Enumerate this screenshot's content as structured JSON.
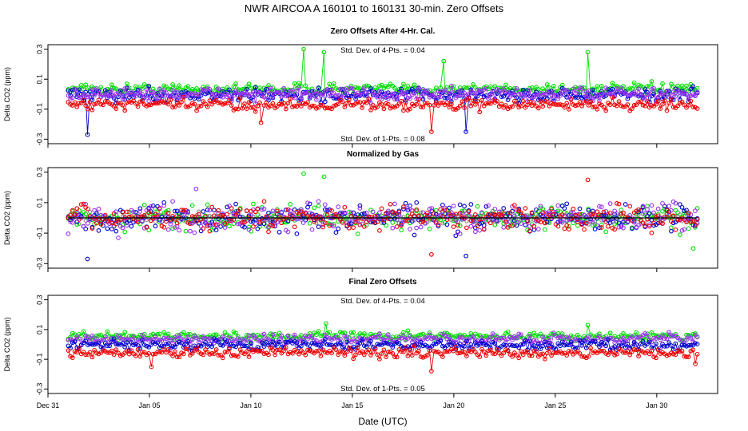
{
  "figure": {
    "title": "NWR   AIRCOA A   160101 to 160131   30-min. Zero Offsets",
    "x_axis_label": "Date (UTC)"
  },
  "colors": {
    "green": "#00dd00",
    "blue": "#0000cc",
    "red": "#ee0000",
    "purple": "#9933ee",
    "gray": "#888888",
    "black": "#000000"
  },
  "chart_data": [
    {
      "type": "scatter",
      "title": "Zero Offsets After 4-Hr. Cal.",
      "xlabel": "",
      "ylabel": "Delta CO2 (ppm)",
      "xlim": [
        0,
        33
      ],
      "ylim": [
        -0.33,
        0.33
      ],
      "yticks": [
        -0.3,
        -0.1,
        0.1,
        0.3
      ],
      "ytick_labels": [
        "-0.3",
        "-0.1",
        "0.1",
        "0.3"
      ],
      "annotations": [
        "Std. Dev. of 4-Pts. = 0.04",
        "Std. Dev. of 1-Pts. = 0.08"
      ],
      "series": [
        {
          "name": "green",
          "mean": 0.035,
          "spread": 0.032,
          "lines": true
        },
        {
          "name": "blue",
          "mean": -0.005,
          "spread": 0.04,
          "lines": true
        },
        {
          "name": "purple",
          "mean": 0.0,
          "spread": 0.04,
          "lines": true
        },
        {
          "name": "red",
          "mean": -0.07,
          "spread": 0.035,
          "lines": true
        }
      ],
      "spikes": [
        {
          "series": "green",
          "x": 12.6,
          "y": 0.3
        },
        {
          "series": "green",
          "x": 13.6,
          "y": 0.28
        },
        {
          "series": "green",
          "x": 26.6,
          "y": 0.28
        },
        {
          "series": "green",
          "x": 19.5,
          "y": 0.22
        },
        {
          "series": "blue",
          "x": 1.95,
          "y": -0.27
        },
        {
          "series": "blue",
          "x": 20.6,
          "y": -0.25
        },
        {
          "series": "red",
          "x": 18.9,
          "y": -0.25
        },
        {
          "series": "red",
          "x": 10.5,
          "y": -0.19
        }
      ]
    },
    {
      "type": "scatter",
      "title": "Normalized by Gas",
      "xlabel": "",
      "ylabel": "Delta CO2 (ppm)",
      "xlim": [
        0,
        33
      ],
      "ylim": [
        -0.33,
        0.33
      ],
      "yticks": [
        -0.3,
        -0.1,
        0.1,
        0.3
      ],
      "ytick_labels": [
        "-0.3",
        "-0.1",
        "0.1",
        "0.3"
      ],
      "annotations": [],
      "series": [
        {
          "name": "gray",
          "mean": 0.0,
          "spread": 0.03,
          "lines": false
        },
        {
          "name": "green",
          "mean": 0.0,
          "spread": 0.07,
          "lines": false
        },
        {
          "name": "blue",
          "mean": 0.0,
          "spread": 0.08,
          "lines": false
        },
        {
          "name": "purple",
          "mean": 0.0,
          "spread": 0.08,
          "lines": false
        },
        {
          "name": "red",
          "mean": 0.0,
          "spread": 0.07,
          "lines": false
        },
        {
          "name": "black",
          "mean": 0.0,
          "spread": 0.0,
          "lines": true
        }
      ],
      "spikes": [
        {
          "series": "green",
          "x": 12.6,
          "y": 0.29
        },
        {
          "series": "green",
          "x": 13.6,
          "y": 0.27
        },
        {
          "series": "red",
          "x": 26.6,
          "y": 0.25
        },
        {
          "series": "blue",
          "x": 1.95,
          "y": -0.27
        },
        {
          "series": "blue",
          "x": 20.6,
          "y": -0.25
        },
        {
          "series": "red",
          "x": 18.9,
          "y": -0.24
        },
        {
          "series": "green",
          "x": 31.8,
          "y": -0.2
        },
        {
          "series": "purple",
          "x": 7.3,
          "y": 0.19
        }
      ]
    },
    {
      "type": "scatter",
      "title": "Final Zero Offsets",
      "xlabel": "Date (UTC)",
      "ylabel": "Delta CO2 (ppm)",
      "xlim": [
        0,
        33
      ],
      "ylim": [
        -0.33,
        0.33
      ],
      "yticks": [
        -0.3,
        -0.1,
        0.1,
        0.3
      ],
      "ytick_labels": [
        "-0.3",
        "-0.1",
        "0.1",
        "0.3"
      ],
      "annotations": [
        "Std. Dev. of 4-Pts. = 0.04",
        "Std. Dev. of 1-Pts. = 0.05"
      ],
      "series": [
        {
          "name": "green",
          "mean": 0.055,
          "spread": 0.025,
          "lines": true
        },
        {
          "name": "purple",
          "mean": 0.035,
          "spread": 0.03,
          "lines": true
        },
        {
          "name": "blue",
          "mean": -0.005,
          "spread": 0.03,
          "lines": true
        },
        {
          "name": "red",
          "mean": -0.055,
          "spread": 0.03,
          "lines": true
        }
      ],
      "spikes": [
        {
          "series": "green",
          "x": 13.7,
          "y": 0.14
        },
        {
          "series": "green",
          "x": 26.6,
          "y": 0.13
        },
        {
          "series": "red",
          "x": 5.1,
          "y": -0.15
        },
        {
          "series": "red",
          "x": 18.9,
          "y": -0.18
        },
        {
          "series": "red",
          "x": 31.9,
          "y": -0.13
        }
      ],
      "xticks": [
        0,
        5,
        10,
        15,
        20,
        25,
        30
      ],
      "xtick_labels": [
        "Dec 31",
        "Jan 05",
        "Jan 10",
        "Jan 15",
        "Jan 20",
        "Jan 25",
        "Jan 30"
      ]
    }
  ]
}
